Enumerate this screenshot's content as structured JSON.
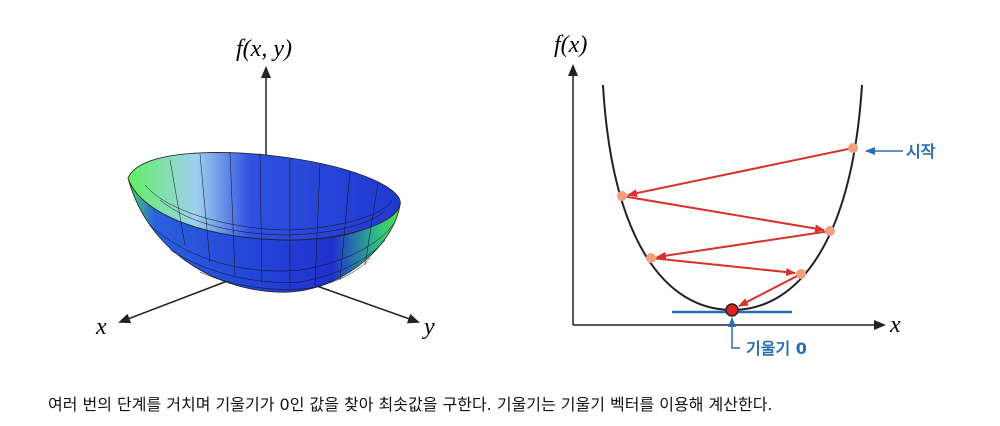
{
  "left": {
    "z_label": "f(x, y)",
    "x_label": "x",
    "y_label": "y"
  },
  "right": {
    "y_label": "f(x)",
    "x_label": "x",
    "start_label": "시작",
    "min_label": "기울기 0"
  },
  "caption": "여러 번의 단계를 거치며 기울기가 0인 값을 찾아 최솟값을 구한다. 기울기는 기울기 벡터를 이용해 계산한다."
}
